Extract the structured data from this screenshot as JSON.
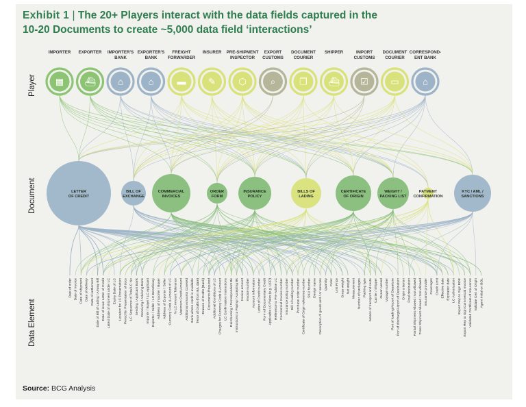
{
  "title": {
    "exhibit": "Exhibit 1",
    "line1": "The 20+ Players interact with the data fields captured in the",
    "line2": "10-20 Documents to create ~5,000 data field ‘interactions’"
  },
  "row_labels": {
    "player": "Player",
    "document": "Document",
    "data_element": "Data Element"
  },
  "players": [
    {
      "label1": "IMPORTER",
      "label2": "",
      "icon": "warehouse-icon",
      "color": "#8cc474"
    },
    {
      "label1": "EXPORTER",
      "label2": "",
      "icon": "ship-icon",
      "color": "#8cc474"
    },
    {
      "label1": "IMPORTER'S",
      "label2": "BANK",
      "icon": "bank-icon",
      "color": "#9db4c8"
    },
    {
      "label1": "EXPORTER'S",
      "label2": "BANK",
      "icon": "bank-icon",
      "color": "#9db4c8"
    },
    {
      "label1": "FREIGHT",
      "label2": "FORWARDER",
      "icon": "truck-icon",
      "color": "#d9e27a"
    },
    {
      "label1": "INSURER",
      "label2": "",
      "icon": "clipboard-icon",
      "color": "#d9e27a"
    },
    {
      "label1": "PRE-SHIPMENT",
      "label2": "INSPECTOR",
      "icon": "box-icon",
      "color": "#d9e27a"
    },
    {
      "label1": "EXPORT",
      "label2": "CUSTOMS",
      "icon": "inspect-icon",
      "color": "#b5b59a"
    },
    {
      "label1": "DOCUMENT",
      "label2": "COURIER",
      "icon": "documents-icon",
      "color": "#d9e27a"
    },
    {
      "label1": "SHIPPER",
      "label2": "",
      "icon": "ship-icon",
      "color": "#d9e27a"
    },
    {
      "label1": "IMPORT",
      "label2": "CUSTOMS",
      "icon": "checklist-icon",
      "color": "#b5b59a"
    },
    {
      "label1": "DOCUMENT",
      "label2": "COURIER",
      "icon": "folder-icon",
      "color": "#d9e27a"
    },
    {
      "label1": "CORRESPOND-",
      "label2": "ENT BANK",
      "icon": "bank-icon",
      "color": "#9db4c8"
    }
  ],
  "documents": [
    {
      "label1": "LETTER",
      "label2": "OF CREDIT",
      "color": "#9db4c8"
    },
    {
      "label1": "BILL OF",
      "label2": "EXCHANGE",
      "color": "#9db4c8"
    },
    {
      "label1": "COMMERCIAL",
      "label2": "INVOICES",
      "color": "#86bd7a"
    },
    {
      "label1": "ORDER",
      "label2": "FORM",
      "color": "#86bd7a"
    },
    {
      "label1": "INSURANCE",
      "label2": "POLICY",
      "color": "#86bd7a"
    },
    {
      "label1": "BILLS OF",
      "label2": "LADING",
      "color": "#d9e27a"
    },
    {
      "label1": "CERTIFICATE",
      "label2": "OF ORIGIN",
      "color": "#86bd7a"
    },
    {
      "label1": "WEIGHT /",
      "label2": "PACKING LIST",
      "color": "#86bd7a"
    },
    {
      "label1": "PAYMENT",
      "label2": "CONFIRMATION",
      "color": "#d9e27a"
    },
    {
      "label1": "KYC / AML /",
      "label2": "SANCTIONS",
      "color": "#9db4c8"
    }
  ],
  "data_elements": [
    "Date of order",
    "Date of invoice",
    "Date of shipment",
    "Date of delivery",
    "Date of settlement",
    "Date of Bill of Lading / Airway Bill",
    "Date of issue Letter of Credit",
    "Latest Date of shipment under LC",
    "Expiry Date of LC",
    "Location for LC Presentation",
    "Period for Presentation of docs",
    "LC Sequence of Total LC No",
    "Sending / Applicant Bank",
    "Receiving / Advising Bank",
    "Importer / Buyer / LC Applicant",
    "Exporter / Seller / LC Beneficiary",
    "Address of Importer / Buyer",
    "Address of Exporter / Seller",
    "Currency Code & Amount of LC",
    "% LC Amount Tolerance",
    "Maximum Credit Amount",
    "Additional Amounts Covered",
    "Bank where credit is available",
    "Tenor of Drafts (from B/L date)",
    "Drawee of Drafts (Bank)",
    "Documents Required",
    "Additional Conditions of LC",
    "Charges for Currency Code & Amount",
    "LC Confirmation Instructions",
    "Reimbursing / Correspondent Bk",
    "Instructions to Paying / Accepting Bk",
    "Invoice amount",
    "Invoice number",
    "Account Information",
    "Letter of Credit number",
    "Form of Documentary Credit",
    "Applicable LC Rules (e.g. UCP)",
    "Reference to Pre-Advise LC",
    "Commercial Invoice number",
    "Insurance policy number",
    "Bill of Lading number",
    "Purchase order number",
    "Certificate of Origin reference number",
    "SKU Number",
    "Design name",
    "Description of goods and / or services",
    "Quantity",
    "Color",
    "Unit Price",
    "Gross weight",
    "Net weight",
    "Measurement",
    "Number of packages",
    "Packing type",
    "Means of transport and route",
    "Carrier / Shipper",
    "Ocean vessel",
    "Voyage number",
    "Port of loading/Airport of Departure",
    "Port of discharge/Airport of Destination",
    "Origin criterion",
    "Final destination",
    "Partial Shipment Allowed / Not Allowed",
    "Trans Shipment Allowed / Not Allowed",
    "Insurance provider",
    "Coverages",
    "Credit Limit",
    "Effective date",
    "Expiration date",
    "LC Authorization",
    "Export Rep to Sign BOE",
    "Export Rep to Sign Commercial Invoice",
    "Validated Certificate of Insurance",
    "Validate Cert of Origin",
    "Agent Initial on BOL"
  ],
  "source": {
    "label": "Source:",
    "text": "BCG Analysis"
  }
}
